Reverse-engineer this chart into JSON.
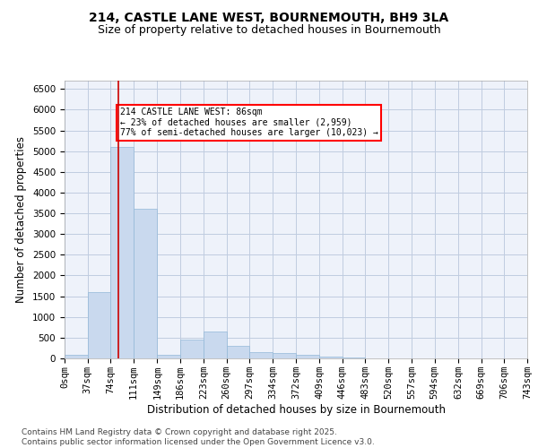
{
  "title_line1": "214, CASTLE LANE WEST, BOURNEMOUTH, BH9 3LA",
  "title_line2": "Size of property relative to detached houses in Bournemouth",
  "xlabel": "Distribution of detached houses by size in Bournemouth",
  "ylabel": "Number of detached properties",
  "bar_color": "#c9d9ee",
  "bar_edge_color": "#93b8d8",
  "bin_labels": [
    "0sqm",
    "37sqm",
    "74sqm",
    "111sqm",
    "149sqm",
    "186sqm",
    "223sqm",
    "260sqm",
    "297sqm",
    "334sqm",
    "372sqm",
    "409sqm",
    "446sqm",
    "483sqm",
    "520sqm",
    "557sqm",
    "594sqm",
    "632sqm",
    "669sqm",
    "706sqm",
    "743sqm"
  ],
  "bar_values": [
    80,
    1600,
    5100,
    3600,
    80,
    450,
    650,
    300,
    150,
    130,
    80,
    40,
    15,
    5,
    3,
    2,
    1,
    0,
    0,
    0
  ],
  "property_line_x": 86,
  "bin_edges": [
    0,
    37,
    74,
    111,
    149,
    186,
    223,
    260,
    297,
    334,
    372,
    409,
    446,
    483,
    520,
    557,
    594,
    632,
    669,
    706,
    743
  ],
  "ylim": [
    0,
    6700
  ],
  "yticks": [
    0,
    500,
    1000,
    1500,
    2000,
    2500,
    3000,
    3500,
    4000,
    4500,
    5000,
    5500,
    6000,
    6500
  ],
  "annotation_text": "214 CASTLE LANE WEST: 86sqm\n← 23% of detached houses are smaller (2,959)\n77% of semi-detached houses are larger (10,023) →",
  "annotation_box_color": "white",
  "annotation_box_edge_color": "red",
  "red_line_color": "#cc0000",
  "grid_color": "#c0cce0",
  "background_color": "#eef2fa",
  "footer_text": "Contains HM Land Registry data © Crown copyright and database right 2025.\nContains public sector information licensed under the Open Government Licence v3.0.",
  "title_fontsize": 10,
  "subtitle_fontsize": 9,
  "axis_label_fontsize": 8.5,
  "tick_fontsize": 7.5,
  "footer_fontsize": 6.5
}
